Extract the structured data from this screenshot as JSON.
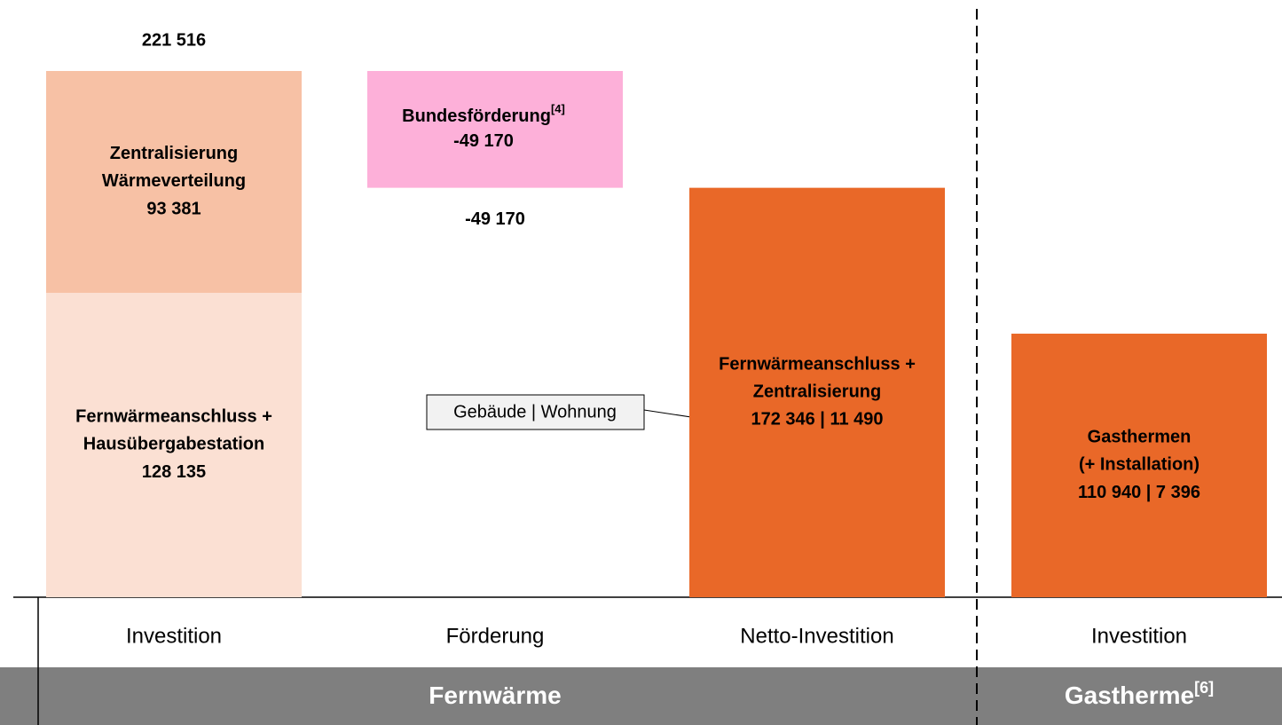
{
  "chart_data": {
    "type": "waterfall",
    "categories": [
      "Investition",
      "Förderung",
      "Netto-Investition",
      "Investition"
    ],
    "measure": [
      "relative",
      "relative",
      "total",
      "total"
    ],
    "series": [
      {
        "label_lines": [
          "Fernwärmeanschluss +",
          "Hausübergabestation"
        ],
        "color": "#fbe0d3",
        "values": [
          128135,
          null,
          null,
          null
        ],
        "value_labels": [
          "128 135",
          null,
          null,
          null
        ]
      },
      {
        "label_lines": [
          "Zentralisierung",
          "Wärmeverteilung"
        ],
        "color": "#f7c1a5",
        "values": [
          93381,
          null,
          null,
          null
        ],
        "value_labels": [
          "93 381",
          null,
          null,
          null
        ]
      },
      {
        "label_lines": [
          "Bundesförderung"
        ],
        "label_sup": "[4]",
        "color": "#fdb0d9",
        "values": [
          null,
          -49170,
          null,
          null
        ],
        "value_labels": [
          null,
          "-49 170",
          null,
          null
        ]
      },
      {
        "label_lines": [
          "Fernwärmeanschluss +",
          "Zentralisierung"
        ],
        "color": "#e96828",
        "values": [
          null,
          null,
          172346,
          null
        ],
        "value_labels": [
          null,
          null,
          "172 346 | 11 490",
          null
        ]
      },
      {
        "label_lines": [
          "Gasthermen",
          "(+ Installation)"
        ],
        "color": "#e96828",
        "values": [
          null,
          null,
          null,
          110940
        ],
        "value_labels": [
          null,
          null,
          null,
          "110 940 | 7 396"
        ]
      }
    ],
    "totals": [
      221516,
      -49170,
      null,
      null
    ],
    "total_labels": [
      "221 516",
      "-49 170",
      null,
      null
    ],
    "annotation": "Gebäude | Wohnung",
    "groups": [
      {
        "label": "Fernwärme"
      },
      {
        "label": "Gastherme",
        "sup": "[6]"
      }
    ]
  }
}
